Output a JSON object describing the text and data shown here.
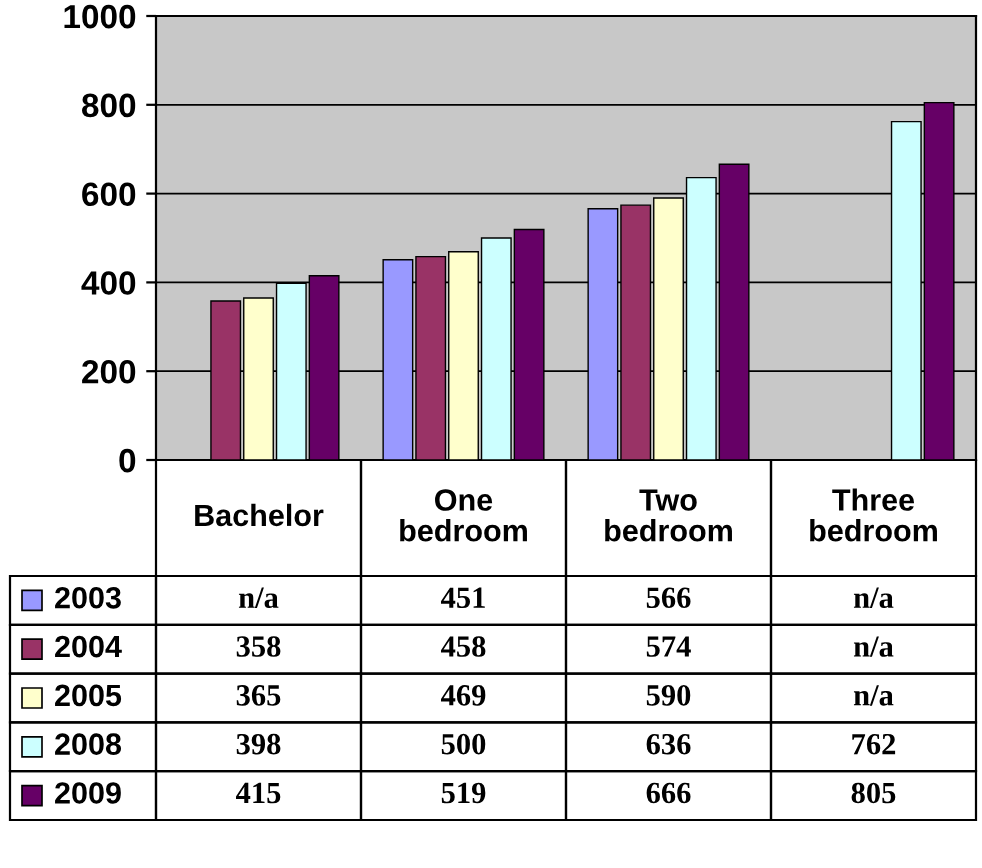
{
  "chart_data": {
    "type": "bar",
    "categories": [
      "Bachelor",
      "One bedroom",
      "Two bedroom",
      "Three bedroom"
    ],
    "series": [
      {
        "name": "2003",
        "color": "#9999ff",
        "values": [
          null,
          451,
          566,
          null
        ],
        "value_labels": [
          "n/a",
          "451",
          "566",
          "n/a"
        ]
      },
      {
        "name": "2004",
        "color": "#993366",
        "values": [
          358,
          458,
          574,
          null
        ],
        "value_labels": [
          "358",
          "458",
          "574",
          "n/a"
        ]
      },
      {
        "name": "2005",
        "color": "#ffffcc",
        "values": [
          365,
          469,
          590,
          null
        ],
        "value_labels": [
          "365",
          "469",
          "590",
          "n/a"
        ]
      },
      {
        "name": "2008",
        "color": "#ccffff",
        "values": [
          398,
          500,
          636,
          762
        ],
        "value_labels": [
          "398",
          "500",
          "636",
          "762"
        ]
      },
      {
        "name": "2009",
        "color": "#660066",
        "values": [
          415,
          519,
          666,
          805
        ],
        "value_labels": [
          "415",
          "519",
          "666",
          "805"
        ]
      }
    ],
    "ylim": [
      0,
      1000
    ],
    "yticks": [
      0,
      200,
      400,
      600,
      800,
      1000
    ],
    "grid": "y",
    "legend": "bottom"
  }
}
